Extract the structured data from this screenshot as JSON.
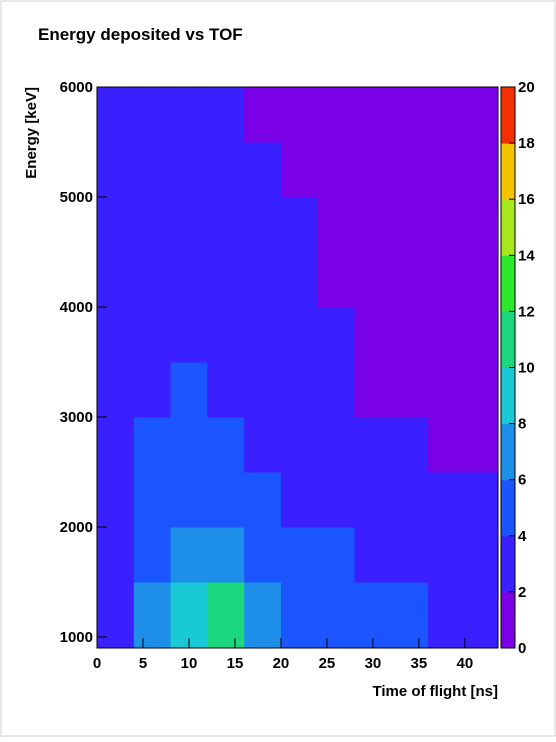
{
  "chart_data": {
    "type": "heatmap",
    "title": "Energy deposited vs TOF",
    "x_label": "Time of flight [ns]",
    "y_label": "Energy [keV]",
    "x_bins": [
      0,
      4,
      8,
      12,
      16,
      20,
      24,
      28,
      32,
      36,
      40,
      43.6
    ],
    "y_bins": [
      900,
      1500,
      2000,
      2500,
      3000,
      3500,
      4000,
      4500,
      5000,
      5500,
      6000
    ],
    "z": [
      [
        3,
        6,
        8,
        10,
        7,
        5,
        5,
        4,
        4,
        3,
        3
      ],
      [
        3,
        5,
        6,
        6,
        5,
        4,
        4,
        3,
        3,
        3,
        2
      ],
      [
        2,
        4,
        5,
        5,
        4,
        3,
        3,
        2,
        2,
        2,
        2
      ],
      [
        2,
        4,
        4,
        4,
        3,
        3,
        2,
        2,
        2,
        1,
        1
      ],
      [
        2,
        3,
        4,
        3,
        3,
        2,
        2,
        1,
        1,
        1,
        1
      ],
      [
        2,
        3,
        3,
        3,
        2,
        2,
        2,
        1,
        1,
        1,
        1
      ],
      [
        3,
        3,
        3,
        2,
        2,
        2,
        1,
        1,
        1,
        1,
        1
      ],
      [
        2,
        3,
        3,
        2,
        2,
        2,
        1,
        1,
        1,
        1,
        1
      ],
      [
        2,
        2,
        2,
        2,
        2,
        1,
        1,
        1,
        1,
        1,
        1
      ],
      [
        2,
        2,
        2,
        2,
        1,
        1,
        1,
        1,
        1,
        1,
        1
      ]
    ],
    "xlim": [
      0,
      43.6
    ],
    "xticks": [
      0,
      5,
      10,
      15,
      20,
      25,
      30,
      35,
      40
    ],
    "ylim": [
      900,
      6000
    ],
    "yticks": [
      1000,
      2000,
      3000,
      4000,
      5000,
      6000
    ],
    "zlim": [
      0,
      20
    ],
    "zticks": [
      0,
      2,
      4,
      6,
      8,
      10,
      12,
      14,
      16,
      18,
      20
    ],
    "palette": [
      "#7a00e6",
      "#3a1fff",
      "#1a55ff",
      "#1e8fe8",
      "#19c9d6",
      "#1bd77e",
      "#2ee82e",
      "#a6e81c",
      "#f5c400",
      "#f53000"
    ]
  }
}
